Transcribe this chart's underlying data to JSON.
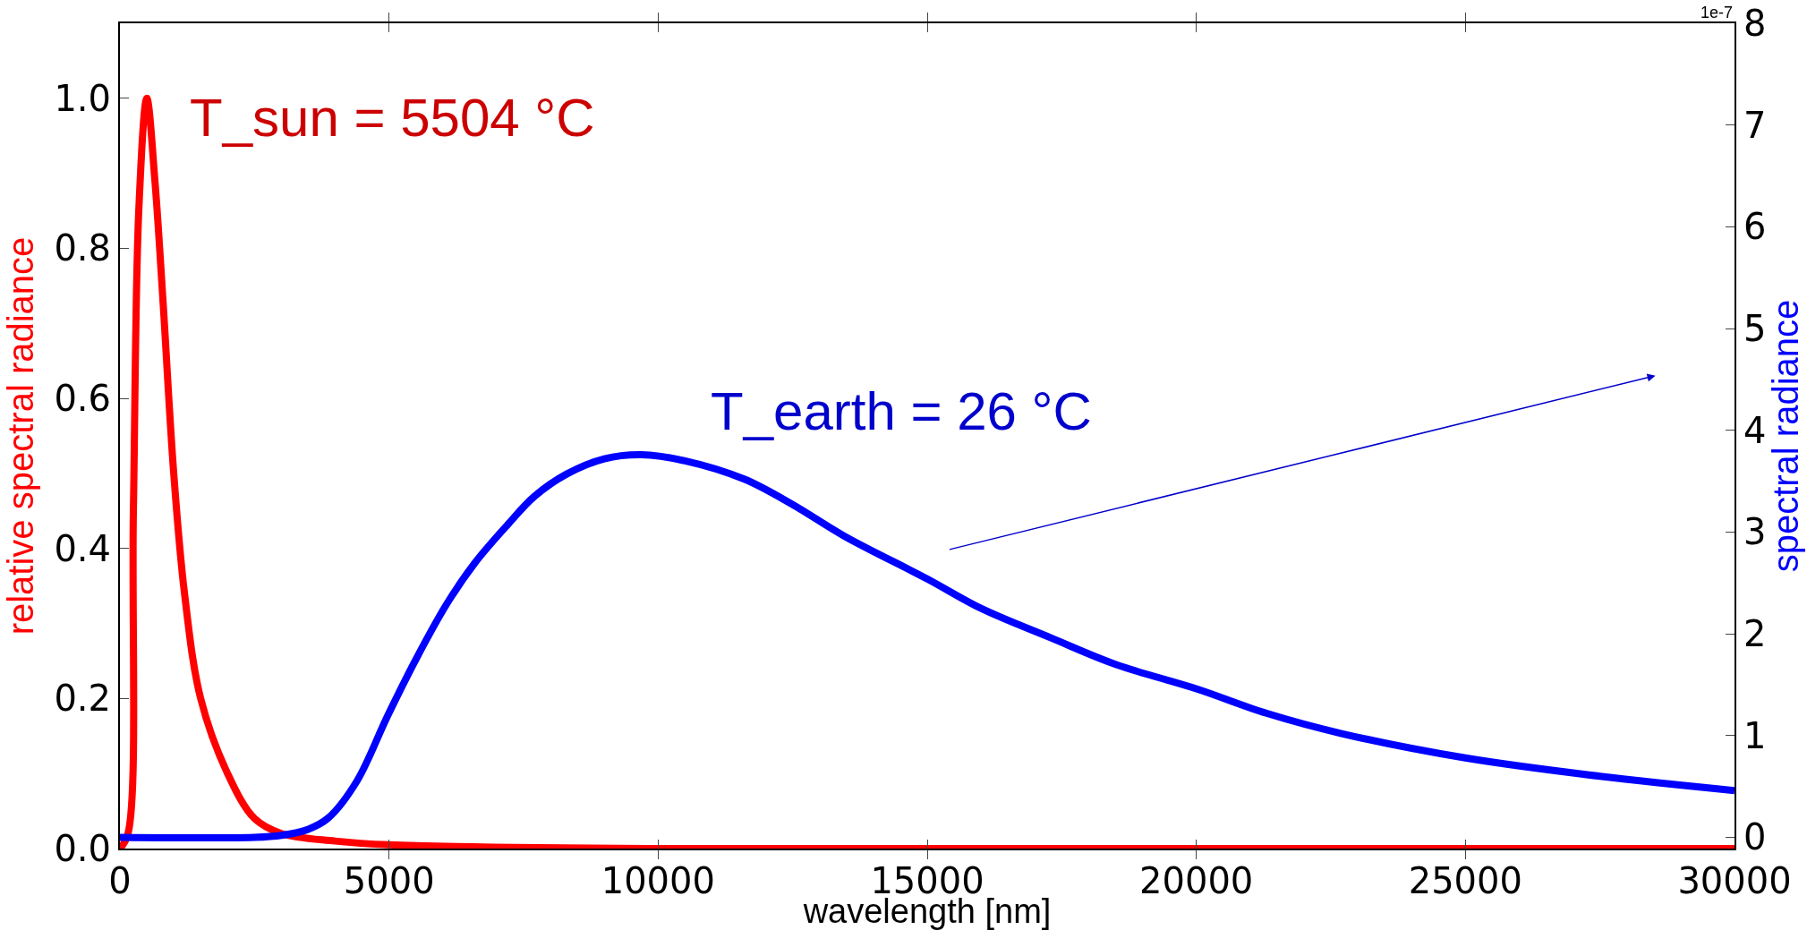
{
  "chart_data": {
    "type": "line",
    "xlabel": "wavelength [nm]",
    "ylabel": "relative spectral radiance",
    "y2label": "spectral radiance",
    "annotations": [
      "T_sun = 5504 °C",
      "T_earth = 26 °C",
      "1e-7"
    ],
    "xlim": [
      0,
      30000
    ],
    "xticks": [
      0,
      5000,
      10000,
      15000,
      20000,
      25000,
      30000
    ],
    "ylim": [
      0,
      1.1
    ],
    "yticks": [
      {
        "value": 0,
        "label": "0.0"
      },
      {
        "value": 0.2,
        "label": "0.2"
      },
      {
        "value": 0.4,
        "label": "0.4"
      },
      {
        "value": 0.6,
        "label": "0.6"
      },
      {
        "value": 0.8,
        "label": "0.8"
      },
      {
        "value": 1,
        "label": "1.0"
      }
    ],
    "y2lim": [
      -0.11,
      8
    ],
    "y2ticks": [
      0,
      1,
      2,
      3,
      4,
      5,
      6,
      7,
      8
    ],
    "grid": false,
    "marker": "none",
    "line_style": "solid",
    "series": [
      {
        "color": "#ff0000",
        "x": [
          0,
          150,
          250,
          350,
          500,
          650,
          800,
          1000,
          1200,
          1500,
          2000,
          2500,
          3000,
          4000,
          5000,
          10000,
          30000
        ],
        "values": [
          0,
          0.02,
          0.45,
          0.85,
          1.0,
          0.89,
          0.73,
          0.5,
          0.34,
          0.2,
          0.1,
          0.04,
          0.02,
          0.01,
          0.005,
          0,
          0
        ]
      },
      {
        "color": "#0000ff",
        "axis": "y2",
        "x": [
          0,
          2500,
          3000,
          3500,
          3870,
          4400,
          4970,
          5500,
          6080,
          6600,
          7200,
          7700,
          8300,
          9000,
          9690,
          10500,
          11600,
          12500,
          13460,
          15000,
          16000,
          17300,
          18500,
          20000,
          21300,
          22700,
          25000,
          27500,
          30000
        ],
        "values": [
          0,
          0,
          0.02,
          0.08,
          0.19,
          0.55,
          1.19,
          1.75,
          2.3,
          2.7,
          3.07,
          3.35,
          3.57,
          3.72,
          3.76,
          3.7,
          3.52,
          3.27,
          2.96,
          2.54,
          2.25,
          1.96,
          1.7,
          1.46,
          1.22,
          1.02,
          0.78,
          0.6,
          0.46
        ]
      }
    ]
  }
}
